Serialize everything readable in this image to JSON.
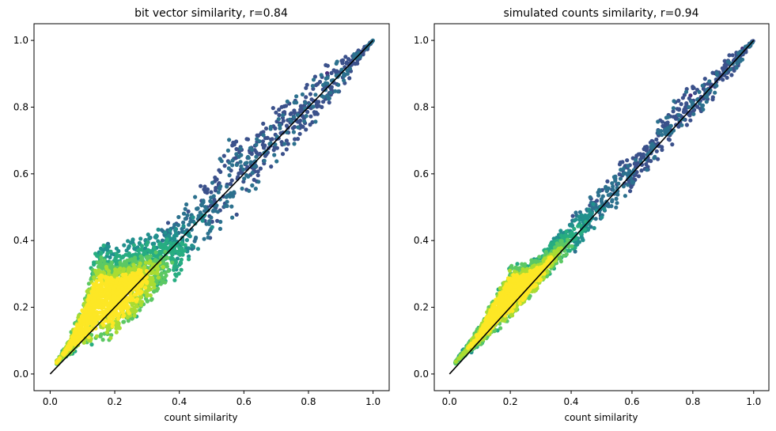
{
  "chart_data": [
    {
      "type": "scatter",
      "title": "bit vector similarity, r=0.84",
      "xlabel": "count similarity",
      "ylabel": "",
      "xlim": [
        -0.05,
        1.05
      ],
      "ylim": [
        -0.05,
        1.05
      ],
      "xticks": [
        "0.0",
        "0.2",
        "0.4",
        "0.6",
        "0.8",
        "1.0"
      ],
      "yticks": [
        "0.0",
        "0.2",
        "0.4",
        "0.6",
        "0.8",
        "1.0"
      ],
      "grid": false,
      "legend": "none",
      "colormap": "viridis",
      "reference_line": {
        "x": [
          0.0,
          1.0
        ],
        "y": [
          0.0,
          1.0
        ],
        "color": "#000000"
      },
      "series_profile": {
        "x": [
          0.02,
          0.05,
          0.1,
          0.15,
          0.2,
          0.25,
          0.3,
          0.35,
          0.4,
          0.45,
          0.5,
          0.55,
          0.6,
          0.65,
          0.7,
          0.75,
          0.8,
          0.85,
          0.9,
          0.95,
          1.0
        ],
        "y_low": [
          0.03,
          0.05,
          0.07,
          0.08,
          0.11,
          0.15,
          0.19,
          0.24,
          0.28,
          0.34,
          0.38,
          0.44,
          0.5,
          0.56,
          0.61,
          0.67,
          0.72,
          0.79,
          0.84,
          0.92,
          1.0
        ],
        "y_high": [
          0.04,
          0.09,
          0.22,
          0.42,
          0.38,
          0.41,
          0.43,
          0.45,
          0.49,
          0.58,
          0.63,
          0.72,
          0.74,
          0.76,
          0.82,
          0.85,
          0.89,
          0.94,
          0.95,
          0.97,
          1.0
        ],
        "density_peak": {
          "x": 0.2,
          "y": 0.15
        }
      }
    },
    {
      "type": "scatter",
      "title": "simulated counts similarity, r=0.94",
      "xlabel": "count similarity",
      "ylabel": "",
      "xlim": [
        -0.05,
        1.05
      ],
      "ylim": [
        -0.05,
        1.05
      ],
      "xticks": [
        "0.0",
        "0.2",
        "0.4",
        "0.6",
        "0.8",
        "1.0"
      ],
      "yticks": [
        "0.0",
        "0.2",
        "0.4",
        "0.6",
        "0.8",
        "1.0"
      ],
      "grid": false,
      "legend": "none",
      "colormap": "viridis",
      "reference_line": {
        "x": [
          0.0,
          1.0
        ],
        "y": [
          0.0,
          1.0
        ],
        "color": "#000000"
      },
      "series_profile": {
        "x": [
          0.02,
          0.05,
          0.1,
          0.15,
          0.2,
          0.25,
          0.3,
          0.35,
          0.4,
          0.45,
          0.5,
          0.55,
          0.6,
          0.65,
          0.7,
          0.75,
          0.8,
          0.85,
          0.9,
          0.95,
          1.0
        ],
        "y_low": [
          0.03,
          0.05,
          0.08,
          0.12,
          0.16,
          0.21,
          0.26,
          0.31,
          0.35,
          0.4,
          0.45,
          0.5,
          0.55,
          0.6,
          0.66,
          0.7,
          0.75,
          0.8,
          0.86,
          0.92,
          1.0
        ],
        "y_high": [
          0.04,
          0.08,
          0.15,
          0.24,
          0.33,
          0.34,
          0.36,
          0.42,
          0.47,
          0.52,
          0.57,
          0.63,
          0.67,
          0.71,
          0.78,
          0.85,
          0.88,
          0.9,
          0.95,
          0.98,
          1.0
        ],
        "density_peak": {
          "x": 0.22,
          "y": 0.2
        }
      }
    }
  ]
}
